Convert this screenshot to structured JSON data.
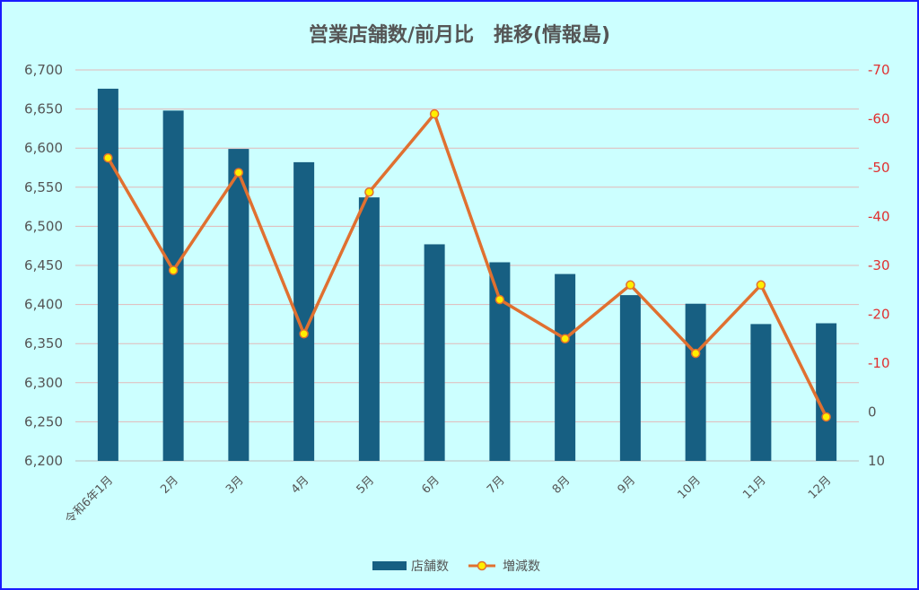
{
  "chart_data": {
    "type": "bar+line",
    "title": "営業店舗数/前月比　推移(情報島)",
    "categories": [
      "令和6年1月",
      "2月",
      "3月",
      "4月",
      "5月",
      "6月",
      "7月",
      "8月",
      "9月",
      "10月",
      "11月",
      "12月"
    ],
    "series": [
      {
        "name": "店舗数",
        "type": "bar",
        "axis": "left",
        "color": "#175f82",
        "values": [
          6676,
          6648,
          6599,
          6582,
          6537,
          6477,
          6454,
          6439,
          6412,
          6401,
          6375,
          6376
        ]
      },
      {
        "name": "増減数",
        "type": "line",
        "axis": "right",
        "color": "#e07030",
        "marker_color": "#ffee00",
        "values": [
          -52,
          -29,
          -49,
          -16,
          -45,
          -61,
          -23,
          -15,
          -26,
          -12,
          -26,
          1
        ]
      }
    ],
    "y_left": {
      "range": [
        6200,
        6700
      ],
      "ticks": [
        "6,200",
        "6,250",
        "6,300",
        "6,350",
        "6,400",
        "6,450",
        "6,500",
        "6,550",
        "6,600",
        "6,650",
        "6,700"
      ]
    },
    "y_right": {
      "range": [
        10,
        -70
      ],
      "reversed": true,
      "ticks": [
        "10",
        "0",
        "-10",
        "-20",
        "-30",
        "-40",
        "-50",
        "-60",
        "-70"
      ]
    },
    "grid": true,
    "legend_position": "bottom"
  }
}
